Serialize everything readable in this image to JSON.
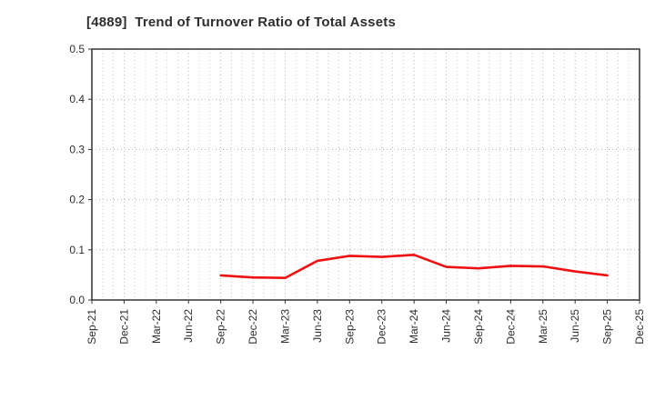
{
  "page": {
    "title": "[4889]  Trend of Turnover Ratio of Total Assets"
  },
  "chart_data": {
    "type": "line",
    "title": "[4889]  Trend of Turnover Ratio of Total Assets",
    "categories": [
      "Sep-21",
      "Dec-21",
      "Mar-22",
      "Jun-22",
      "Sep-22",
      "Dec-22",
      "Mar-23",
      "Jun-23",
      "Sep-23",
      "Dec-23",
      "Mar-24",
      "Jun-24",
      "Sep-24",
      "Dec-24",
      "Mar-25",
      "Jun-25",
      "Sep-25",
      "Dec-25"
    ],
    "series": [
      {
        "name": "Turnover Ratio of Total Assets",
        "color": "#ee1111",
        "values": [
          null,
          null,
          null,
          null,
          0.049,
          0.045,
          0.044,
          0.078,
          0.088,
          0.086,
          0.09,
          0.066,
          0.063,
          0.068,
          0.067,
          0.057,
          0.049,
          null
        ]
      }
    ],
    "ylabel": "",
    "xlabel": "",
    "ylim": [
      0.0,
      0.5
    ],
    "yticks": [
      0.0,
      0.1,
      0.2,
      0.3,
      0.4,
      0.5
    ],
    "ytick_labels": [
      "0.0",
      "0.1",
      "0.2",
      "0.3",
      "0.4",
      "0.5"
    ],
    "grid": true,
    "minor_x_divisions": 3,
    "legend_position": "none"
  },
  "style": {
    "background": "#ffffff",
    "axis_color": "#333333",
    "label_color": "#2e2e2e",
    "major_grid_color": "#b0b0b0",
    "minor_grid_color": "#c9c9c9",
    "line_color": "#ee1111"
  }
}
